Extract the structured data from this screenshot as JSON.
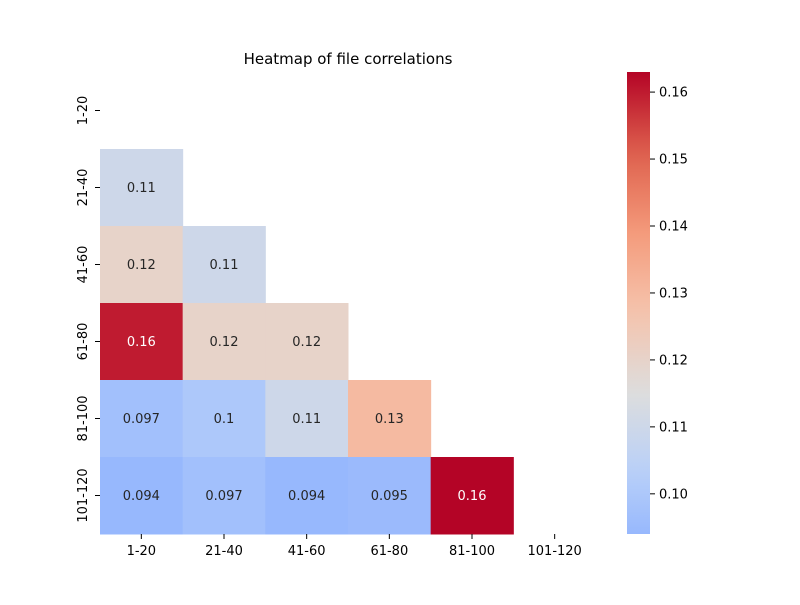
{
  "chart_data": {
    "type": "heatmap",
    "title": "Heatmap of file correlations",
    "xlabel": "",
    "ylabel": "",
    "x_categories": [
      "1-20",
      "21-40",
      "41-60",
      "61-80",
      "81-100",
      "101-120"
    ],
    "y_categories": [
      "1-20",
      "21-40",
      "41-60",
      "61-80",
      "81-100",
      "101-120"
    ],
    "mask": "upper-triangle-including-diagonal",
    "cells": [
      {
        "row": 1,
        "col": 0,
        "value": 0.11,
        "label": "0.11"
      },
      {
        "row": 2,
        "col": 0,
        "value": 0.12,
        "label": "0.12"
      },
      {
        "row": 2,
        "col": 1,
        "value": 0.11,
        "label": "0.11"
      },
      {
        "row": 3,
        "col": 0,
        "value": 0.16,
        "label": "0.16"
      },
      {
        "row": 3,
        "col": 1,
        "value": 0.12,
        "label": "0.12"
      },
      {
        "row": 3,
        "col": 2,
        "value": 0.12,
        "label": "0.12"
      },
      {
        "row": 4,
        "col": 0,
        "value": 0.097,
        "label": "0.097"
      },
      {
        "row": 4,
        "col": 1,
        "value": 0.1,
        "label": "0.1"
      },
      {
        "row": 4,
        "col": 2,
        "value": 0.11,
        "label": "0.11"
      },
      {
        "row": 4,
        "col": 3,
        "value": 0.13,
        "label": "0.13"
      },
      {
        "row": 5,
        "col": 0,
        "value": 0.094,
        "label": "0.094"
      },
      {
        "row": 5,
        "col": 1,
        "value": 0.097,
        "label": "0.097"
      },
      {
        "row": 5,
        "col": 2,
        "value": 0.094,
        "label": "0.094"
      },
      {
        "row": 5,
        "col": 3,
        "value": 0.095,
        "label": "0.095"
      },
      {
        "row": 5,
        "col": 4,
        "value": 0.163,
        "label": "0.16"
      }
    ],
    "colorbar": {
      "colormap": "coolwarm",
      "vmin": 0.094,
      "vmax": 0.163,
      "ticks": [
        0.1,
        0.11,
        0.12,
        0.13,
        0.14,
        0.15,
        0.16
      ],
      "tick_labels": [
        "0.10",
        "0.11",
        "0.12",
        "0.13",
        "0.14",
        "0.15",
        "0.16"
      ]
    },
    "grid": false,
    "legend": "colorbar-right"
  }
}
